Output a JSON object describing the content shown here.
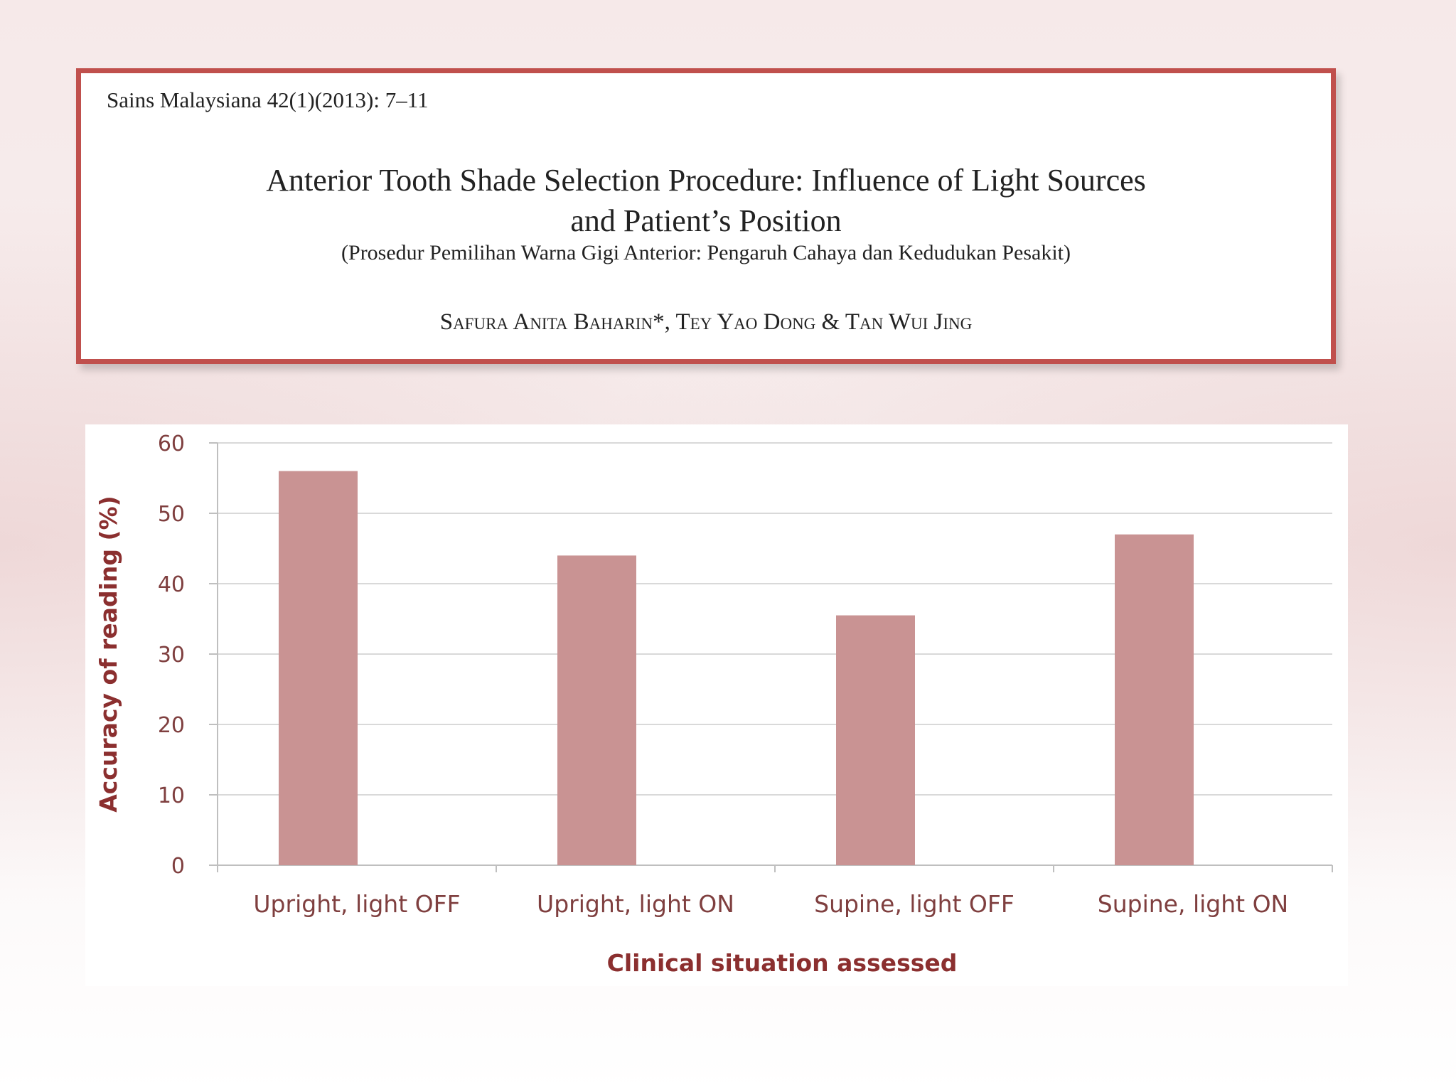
{
  "paper": {
    "journal": "Sains Malaysiana 42(1)(2013): 7–11",
    "title_line1": "Anterior Tooth Shade Selection Procedure: Influence of Light Sources",
    "title_line2": "and Patient’s Position",
    "subtitle": "(Prosedur Pemilihan Warna Gigi Anterior: Pengaruh Cahaya dan Kedudukan Pesakit)",
    "authors": "Safura Anita Baharin*, Tey Yao Dong & Tan Wui Jing"
  },
  "colors": {
    "frame": "#c0504d",
    "bar": "#c99393",
    "grid": "#d9d9d9",
    "axis_text": "#7f3f3f"
  },
  "chart_data": {
    "type": "bar",
    "title": "",
    "xlabel": "Clinical situation  assessed",
    "ylabel": "Accuracy of reading (%)",
    "categories": [
      "Upright, light OFF",
      "Upright, light ON",
      "Supine, light OFF",
      "Supine, light ON"
    ],
    "values": [
      56,
      44,
      35.5,
      47
    ],
    "ylim": [
      0,
      60
    ],
    "yticks": [
      "0",
      "10",
      "20",
      "30",
      "40",
      "50",
      "60"
    ],
    "grid": true,
    "legend": "none"
  }
}
